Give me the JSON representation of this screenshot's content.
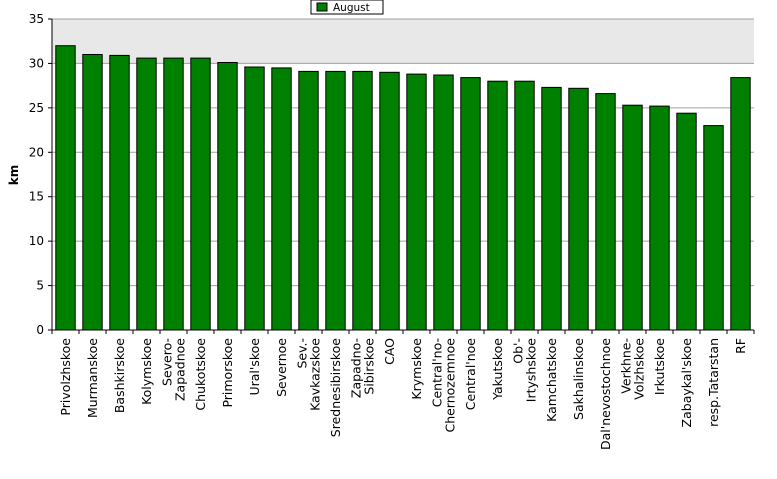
{
  "chart_data": {
    "type": "bar",
    "xlabel": "",
    "ylabel": "km",
    "ylim": [
      0,
      35
    ],
    "yticks": [
      0,
      5,
      10,
      15,
      20,
      25,
      30,
      35
    ],
    "grid": true,
    "legend": "top-center",
    "series": [
      {
        "name": "August",
        "color": "#008000",
        "values": [
          32.0,
          31.0,
          30.9,
          30.6,
          30.6,
          30.6,
          30.1,
          29.6,
          29.5,
          29.1,
          29.1,
          29.1,
          29.0,
          28.8,
          28.7,
          28.4,
          28.0,
          28.0,
          27.3,
          27.2,
          26.6,
          25.3,
          25.2,
          24.4,
          23.0,
          28.4
        ]
      }
    ],
    "categories": [
      [
        "Privolzhskoe"
      ],
      [
        "Murmanskoe"
      ],
      [
        "Bashkirskoe"
      ],
      [
        "Kolymskoe"
      ],
      [
        "Severo-",
        "Zapadnoe"
      ],
      [
        "Chukotskoe"
      ],
      [
        "Primorskoe"
      ],
      [
        "Ural'skoe"
      ],
      [
        "Severnoe"
      ],
      [
        "Sev.-",
        "Kavkazskoe"
      ],
      [
        "Srednesibirskoe"
      ],
      [
        "Zapadno-",
        "Sibirskoe"
      ],
      [
        "CAO"
      ],
      [
        "Krymskoe"
      ],
      [
        "Central'no-",
        "Chernozemnoe"
      ],
      [
        "Central'noe"
      ],
      [
        "Yakutskoe"
      ],
      [
        "Ob'-",
        "Irtyshskoe"
      ],
      [
        "Kamchatskoe"
      ],
      [
        "Sakhalinskoe"
      ],
      [
        "Dal'nevostochnoe"
      ],
      [
        "Verkhne-",
        "Volzhskoe"
      ],
      [
        "Irkutskoe"
      ],
      [
        "Zabaykal'skoe"
      ],
      [
        "resp.Tatarstan"
      ],
      [
        "RF"
      ]
    ]
  },
  "colors": {
    "bar": "#008000",
    "bar_border": "#000000",
    "plot_band": "#e8e8e8",
    "gridline": "#a0a0a0"
  }
}
